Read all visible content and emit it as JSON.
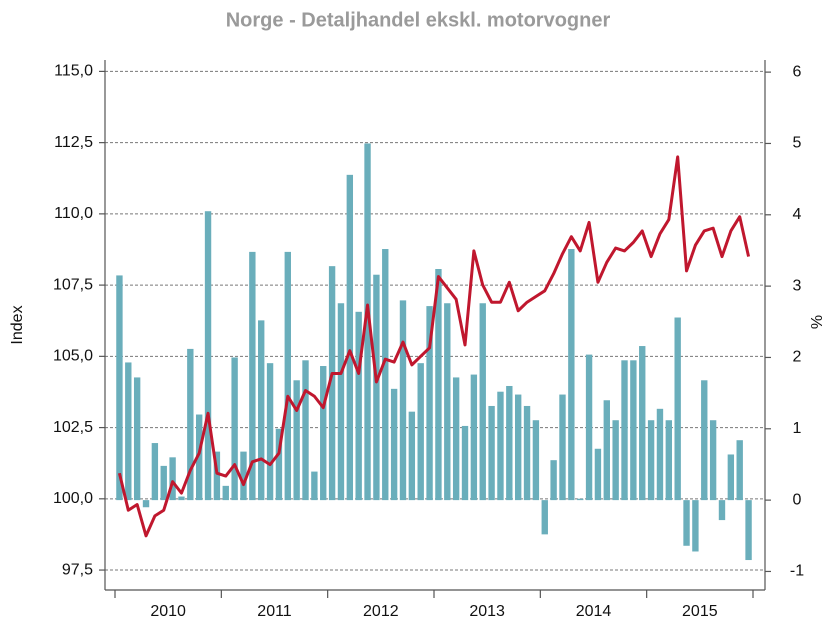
{
  "chart_data": {
    "type": "bar_line",
    "title": "Norge - Detaljhandel ekskl. motorvogner",
    "y_label": "Index",
    "y2_label": "%",
    "categories": [
      null,
      null,
      null,
      null,
      null,
      "2010",
      null,
      null,
      null,
      null,
      null,
      null,
      null,
      null,
      null,
      null,
      null,
      "2011",
      null,
      null,
      null,
      null,
      null,
      null,
      null,
      null,
      null,
      null,
      null,
      "2012",
      null,
      null,
      null,
      null,
      null,
      null,
      null,
      null,
      null,
      null,
      null,
      "2013",
      null,
      null,
      null,
      null,
      null,
      null,
      null,
      null,
      null,
      null,
      null,
      "2014",
      null,
      null,
      null,
      null,
      null,
      null,
      null,
      null,
      null,
      null,
      null,
      "2015",
      null,
      null,
      null,
      null,
      null,
      null
    ],
    "ylim": [
      96.8,
      115.4
    ],
    "yticks": [
      {
        "value": 97.5,
        "label": "97,5"
      },
      {
        "value": 100,
        "label": "100,0"
      },
      {
        "value": 102.5,
        "label": "102,5"
      },
      {
        "value": 105,
        "label": "105,0"
      },
      {
        "value": 107.5,
        "label": "107,5"
      },
      {
        "value": 110,
        "label": "110,0"
      },
      {
        "value": 112.5,
        "label": "112,5"
      },
      {
        "value": 115,
        "label": "115,0"
      }
    ],
    "y2lim": [
      -1.26,
      6.17
    ],
    "y2ticks": [
      -1,
      0,
      1,
      2,
      3,
      4,
      5,
      6
    ],
    "grid": true,
    "series": [
      {
        "name": "%",
        "kind": "bar",
        "axis": "y2",
        "color": "#6aaebb",
        "values": [
          3.15,
          1.93,
          1.72,
          -0.1,
          0.8,
          0.48,
          0.6,
          0.05,
          2.12,
          1.2,
          4.05,
          0.68,
          0.2,
          2.0,
          0.68,
          3.48,
          2.52,
          1.92,
          1.0,
          3.48,
          1.68,
          1.96,
          0.4,
          1.88,
          3.28,
          2.76,
          4.56,
          2.64,
          5.0,
          3.16,
          3.52,
          1.56,
          2.8,
          1.24,
          1.92,
          2.72,
          3.24,
          2.76,
          1.72,
          1.04,
          1.76,
          2.76,
          1.32,
          1.52,
          1.6,
          1.48,
          1.32,
          1.12,
          -0.48,
          0.56,
          1.48,
          3.52,
          0.02,
          2.04,
          0.72,
          1.4,
          1.12,
          1.96,
          1.96,
          2.16,
          1.12,
          1.28,
          1.12,
          2.56,
          -0.64,
          -0.72,
          1.68,
          1.12,
          -0.28,
          0.64,
          0.84,
          -0.84
        ]
      },
      {
        "name": "Index",
        "kind": "line",
        "axis": "y",
        "color": "#c0172e",
        "values": [
          100.9,
          99.6,
          99.8,
          98.7,
          99.4,
          99.6,
          100.6,
          100.2,
          101.0,
          101.6,
          103.0,
          100.9,
          100.8,
          101.2,
          100.5,
          101.3,
          101.4,
          101.2,
          101.6,
          103.6,
          103.1,
          103.8,
          103.6,
          103.2,
          104.4,
          104.4,
          105.2,
          104.4,
          106.8,
          104.1,
          104.9,
          104.8,
          105.5,
          104.7,
          105.0,
          105.3,
          107.8,
          107.4,
          107.0,
          105.4,
          108.7,
          107.5,
          106.9,
          106.9,
          107.6,
          106.6,
          106.9,
          107.1,
          107.3,
          107.9,
          108.6,
          109.2,
          108.7,
          109.7,
          107.6,
          108.3,
          108.8,
          108.7,
          109.0,
          109.4,
          108.5,
          109.3,
          109.8,
          112.0,
          108.0,
          108.9,
          109.4,
          109.5,
          108.5,
          109.4,
          109.9,
          108.5
        ]
      }
    ]
  }
}
